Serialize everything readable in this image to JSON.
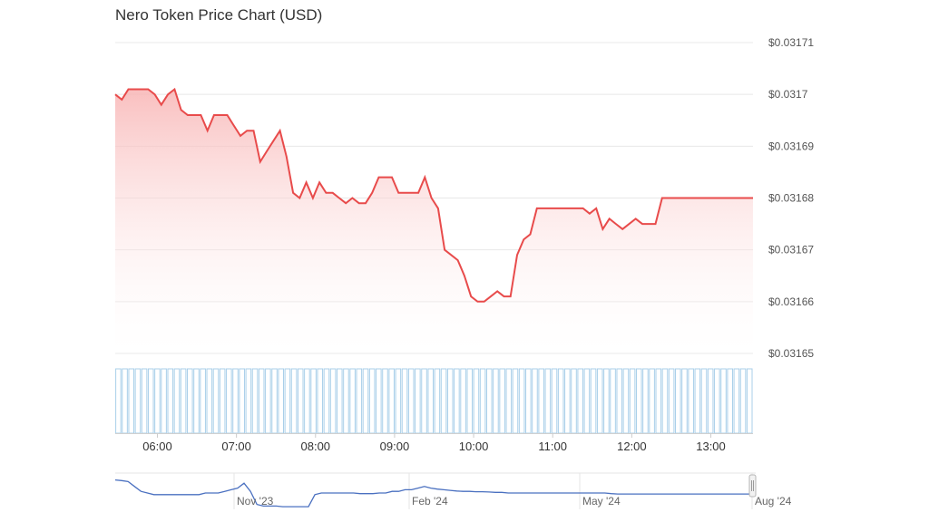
{
  "chart_data": {
    "type": "line",
    "title": "Nero Token Price Chart (USD)",
    "ylabel": "",
    "xlabel": "",
    "ylim": [
      0.03165,
      0.03171
    ],
    "y_ticks": [
      "$0.03171",
      "$0.0317",
      "$0.03169",
      "$0.03168",
      "$0.03167",
      "$0.03166",
      "$0.03165"
    ],
    "y_tick_values": [
      0.03171,
      0.0317,
      0.03169,
      0.03168,
      0.03167,
      0.03166,
      0.03165
    ],
    "x_ticks": [
      "06:00",
      "07:00",
      "08:00",
      "09:00",
      "10:00",
      "11:00",
      "12:00",
      "13:00"
    ],
    "x_tick_values": [
      360,
      420,
      480,
      540,
      600,
      660,
      720,
      780
    ],
    "xlim": [
      328,
      812
    ],
    "grid": true,
    "series": [
      {
        "color": "#e84b4b",
        "x": [
          328,
          333,
          338,
          343,
          348,
          353,
          358,
          363,
          368,
          373,
          378,
          383,
          388,
          393,
          398,
          403,
          408,
          413,
          418,
          423,
          428,
          433,
          438,
          443,
          448,
          453,
          458,
          463,
          468,
          473,
          478,
          483,
          488,
          493,
          498,
          503,
          508,
          513,
          518,
          523,
          528,
          533,
          538,
          543,
          548,
          553,
          558,
          563,
          568,
          573,
          578,
          583,
          588,
          593,
          598,
          603,
          608,
          613,
          618,
          623,
          628,
          633,
          638,
          643,
          648,
          653,
          658,
          663,
          668,
          673,
          678,
          683,
          688,
          693,
          698,
          703,
          708,
          713,
          718,
          723,
          728,
          733,
          738,
          743,
          748,
          753,
          758,
          763,
          768,
          773,
          778,
          783,
          788,
          793,
          798,
          803,
          808,
          812
        ],
        "values": [
          0.0317,
          0.031699,
          0.031701,
          0.031701,
          0.031701,
          0.031701,
          0.0317,
          0.031698,
          0.0317,
          0.031701,
          0.031697,
          0.031696,
          0.031696,
          0.031696,
          0.031693,
          0.031696,
          0.031696,
          0.031696,
          0.031694,
          0.031692,
          0.031693,
          0.031693,
          0.031687,
          0.031689,
          0.031691,
          0.031693,
          0.031688,
          0.031681,
          0.03168,
          0.031683,
          0.03168,
          0.031683,
          0.031681,
          0.031681,
          0.03168,
          0.031679,
          0.03168,
          0.031679,
          0.031679,
          0.031681,
          0.031684,
          0.031684,
          0.031684,
          0.031681,
          0.031681,
          0.031681,
          0.031681,
          0.031684,
          0.03168,
          0.031678,
          0.03167,
          0.031669,
          0.031668,
          0.031665,
          0.031661,
          0.03166,
          0.03166,
          0.031661,
          0.031662,
          0.031661,
          0.031661,
          0.031669,
          0.031672,
          0.031673,
          0.031678,
          0.031678,
          0.031678,
          0.031678,
          0.031678,
          0.031678,
          0.031678,
          0.031678,
          0.031677,
          0.031678,
          0.031674,
          0.031676,
          0.031675,
          0.031674,
          0.031675,
          0.031676,
          0.031675,
          0.031675,
          0.031675,
          0.03168,
          0.03168,
          0.03168,
          0.03168,
          0.03168,
          0.03168,
          0.03168,
          0.03168,
          0.03168,
          0.03168,
          0.03168,
          0.03168,
          0.03168,
          0.03168,
          0.03168
        ]
      }
    ],
    "volume": {
      "color": "#a9cfe9",
      "bar_count": 98,
      "relative_values": [
        1,
        1,
        1,
        1,
        1,
        1,
        1,
        1,
        1,
        1,
        1,
        1,
        1,
        1,
        1,
        1,
        1,
        1,
        1,
        1,
        1,
        1,
        1,
        1,
        1,
        1,
        1,
        1,
        1,
        1,
        1,
        1,
        1,
        1,
        1,
        1,
        1,
        1,
        1,
        1,
        1,
        1,
        1,
        1,
        1,
        1,
        1,
        1,
        1,
        1,
        1,
        1,
        1,
        1,
        1,
        1,
        1,
        1,
        1,
        1,
        1,
        1,
        1,
        1,
        1,
        1,
        1,
        1,
        1,
        1,
        1,
        1,
        1,
        1,
        1,
        1,
        1,
        1,
        1,
        1,
        1,
        1,
        1,
        1,
        1,
        1,
        1,
        1,
        1,
        1,
        1,
        1,
        1,
        1,
        1,
        1,
        1,
        1
      ]
    },
    "navigator": {
      "ticks": [
        "Nov '23",
        "Feb '24",
        "May '24",
        "Aug '24"
      ],
      "relative_values": [
        0.9,
        0.88,
        0.85,
        0.7,
        0.55,
        0.5,
        0.45,
        0.45,
        0.45,
        0.45,
        0.45,
        0.45,
        0.45,
        0.45,
        0.5,
        0.5,
        0.5,
        0.55,
        0.6,
        0.65,
        0.8,
        0.55,
        0.15,
        0.1,
        0.1,
        0.1,
        0.08,
        0.08,
        0.08,
        0.08,
        0.08,
        0.45,
        0.5,
        0.5,
        0.5,
        0.5,
        0.5,
        0.5,
        0.48,
        0.48,
        0.48,
        0.5,
        0.5,
        0.55,
        0.55,
        0.6,
        0.6,
        0.65,
        0.7,
        0.65,
        0.62,
        0.6,
        0.58,
        0.56,
        0.55,
        0.55,
        0.54,
        0.54,
        0.53,
        0.52,
        0.52,
        0.5,
        0.5,
        0.5,
        0.5,
        0.5,
        0.5,
        0.5,
        0.5,
        0.5,
        0.5,
        0.5,
        0.5,
        0.5,
        0.5,
        0.5,
        0.5,
        0.48,
        0.47,
        0.47,
        0.47,
        0.47,
        0.47,
        0.47,
        0.47,
        0.47,
        0.47,
        0.47,
        0.47,
        0.47,
        0.47,
        0.47,
        0.47,
        0.47,
        0.47,
        0.47,
        0.47,
        0.47,
        0.47,
        0.47
      ],
      "line_color": "#4a70c0"
    }
  }
}
